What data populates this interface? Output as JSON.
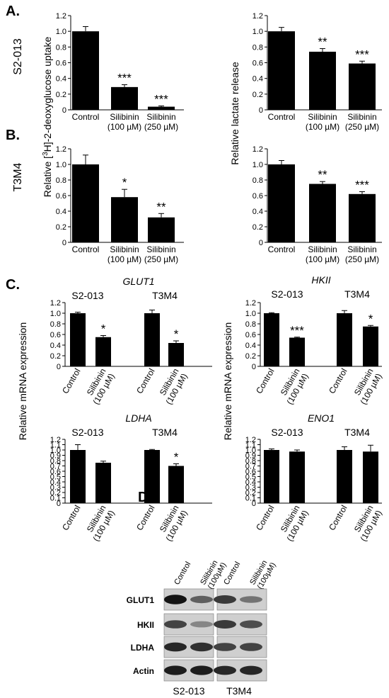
{
  "panels": {
    "A": "A.",
    "B": "B.",
    "C": "C.",
    "D": "D."
  },
  "row_labels": {
    "A": "S2-013",
    "B": "T3M4"
  },
  "shared_ylabels": {
    "uptake": "Relative [3H]-2-deoxyglucose uptake",
    "uptake_parts": [
      "Relative [",
      "3",
      "H]-2-deoxyglucose uptake"
    ],
    "lactate": "Relative lactate release",
    "mrna": "Relative mRNA expression"
  },
  "chart_data": [
    {
      "id": "A-uptake",
      "type": "bar",
      "categories": [
        "Control",
        "Silibinin (100 µM)",
        "Silibinin (250 µM)"
      ],
      "values": [
        1.0,
        0.29,
        0.04
      ],
      "errors": [
        0.06,
        0.03,
        0.01
      ],
      "significance": [
        "",
        "***",
        "***"
      ],
      "ylim": [
        0,
        1.2
      ],
      "yticks": [
        "0",
        "0.2",
        "0.4",
        "0.6",
        "0.8",
        "1.0",
        "1.2"
      ],
      "ylabel": "Relative [3H]-2-deoxyglucose uptake"
    },
    {
      "id": "A-lactate",
      "type": "bar",
      "categories": [
        "Control",
        "Silibinin (100 µM)",
        "Silibinin (250 µM)"
      ],
      "values": [
        1.0,
        0.74,
        0.59
      ],
      "errors": [
        0.05,
        0.04,
        0.03
      ],
      "significance": [
        "",
        "**",
        "***"
      ],
      "ylim": [
        0,
        1.2
      ],
      "yticks": [
        "0",
        "0.2",
        "0.4",
        "0.6",
        "0.8",
        "1.0",
        "1.2"
      ],
      "ylabel": "Relative lactate release"
    },
    {
      "id": "B-uptake",
      "type": "bar",
      "categories": [
        "Control",
        "Silibinin (100 µM)",
        "Silibinin (250 µM)"
      ],
      "values": [
        1.0,
        0.58,
        0.32
      ],
      "errors": [
        0.12,
        0.1,
        0.05
      ],
      "significance": [
        "",
        "*",
        "**"
      ],
      "ylim": [
        0,
        1.2
      ],
      "yticks": [
        "0",
        "0.2",
        "0.4",
        "0.6",
        "0.8",
        "1.0",
        "1.2"
      ],
      "ylabel": "Relative [3H]-2-deoxyglucose uptake"
    },
    {
      "id": "B-lactate",
      "type": "bar",
      "categories": [
        "Control",
        "Silibinin (100 µM)",
        "Silibinin (250 µM)"
      ],
      "values": [
        1.0,
        0.75,
        0.62
      ],
      "errors": [
        0.05,
        0.03,
        0.03
      ],
      "significance": [
        "",
        "**",
        "***"
      ],
      "ylim": [
        0,
        1.2
      ],
      "yticks": [
        "0",
        "0.2",
        "0.4",
        "0.6",
        "0.8",
        "1.0",
        "1.2"
      ],
      "ylabel": "Relative lactate release"
    },
    {
      "id": "C-GLUT1",
      "type": "bar",
      "title": "GLUT1",
      "groups": [
        "S2-013",
        "T3M4"
      ],
      "categories": [
        "Control",
        "Silibinin (100 µM)",
        "Control",
        "Silibinin (100 µM)"
      ],
      "values": [
        1.0,
        0.55,
        1.0,
        0.44
      ],
      "errors": [
        0.02,
        0.03,
        0.06,
        0.04
      ],
      "significance": [
        "",
        "*",
        "",
        "*"
      ],
      "ylim": [
        0,
        1.2
      ],
      "yticks": [
        "0",
        "0.2",
        "0.4",
        "0.6",
        "0.8",
        "1.0",
        "1.2"
      ],
      "ylabel": "Relative mRNA expression"
    },
    {
      "id": "C-HKII",
      "type": "bar",
      "title": "HKII",
      "groups": [
        "S2-013",
        "T3M4"
      ],
      "categories": [
        "Control",
        "Silibinin (100 µM)",
        "Control",
        "Silibinin (100 µM)"
      ],
      "values": [
        1.0,
        0.54,
        1.0,
        0.75
      ],
      "errors": [
        0.01,
        0.01,
        0.05,
        0.02
      ],
      "significance": [
        "",
        "***",
        "",
        "*"
      ],
      "ylim": [
        0,
        1.2
      ],
      "yticks": [
        "0",
        "0.2",
        "0.4",
        "0.6",
        "0.8",
        "1.0",
        "1.2"
      ],
      "ylabel": "Relative mRNA expression"
    },
    {
      "id": "C-LDHA",
      "type": "bar",
      "title": "LDHA",
      "groups": [
        "S2-013",
        "T3M4"
      ],
      "categories": [
        "Control",
        "Silibinin (100 µM)",
        "Control",
        "Silibinin (100 µM)"
      ],
      "values": [
        1.0,
        0.76,
        1.0,
        0.7
      ],
      "errors": [
        0.1,
        0.03,
        0.01,
        0.04
      ],
      "significance": [
        "",
        "",
        "",
        "*"
      ],
      "ylim": [
        0,
        1.2
      ],
      "yticks": [
        "0",
        "0.1",
        "0.2",
        "0.3",
        "0.4",
        "0.5",
        "0.6",
        "0.7",
        "0.8",
        "0.9",
        "1.0",
        "1.1",
        "1.2"
      ],
      "ylabel": "Relative mRNA expression"
    },
    {
      "id": "C-ENO1",
      "type": "bar",
      "title": "ENO1",
      "groups": [
        "S2-013",
        "T3M4"
      ],
      "categories": [
        "Control",
        "Silibinin (100 µM)",
        "Control",
        "Silibinin (100 µM)"
      ],
      "values": [
        1.0,
        0.97,
        1.0,
        0.97
      ],
      "errors": [
        0.02,
        0.03,
        0.06,
        0.12
      ],
      "significance": [
        "",
        "",
        "",
        ""
      ],
      "ylim": [
        0,
        1.2
      ],
      "yticks": [
        "0",
        "0.1",
        "0.2",
        "0.3",
        "0.4",
        "0.5",
        "0.6",
        "0.7",
        "0.8",
        "0.9",
        "1.0",
        "1.1",
        "1.2"
      ],
      "ylabel": "Relative mRNA expression"
    }
  ],
  "western_blot": {
    "column_labels": [
      "Control",
      "Silibinin (100µM)",
      "Control",
      "Silibinin (100µM)"
    ],
    "rows": [
      "GLUT1",
      "HKII",
      "LDHA",
      "Actin"
    ],
    "cell_lines": [
      "S2-013",
      "T3M4"
    ],
    "band_intensity": [
      [
        0.95,
        0.55,
        0.75,
        0.45
      ],
      [
        0.7,
        0.35,
        0.75,
        0.65
      ],
      [
        0.85,
        0.8,
        0.7,
        0.7
      ],
      [
        0.9,
        0.9,
        0.85,
        0.85
      ]
    ]
  }
}
